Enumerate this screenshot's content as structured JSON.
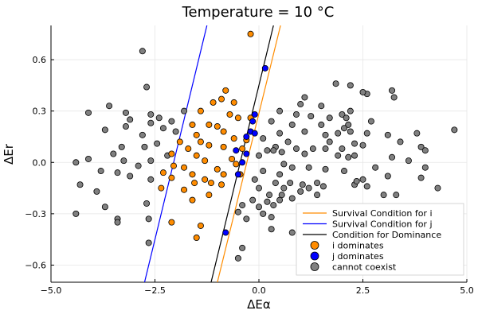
{
  "chart_data": {
    "type": "scatter",
    "title": "Temperature = 10 °C",
    "xlabel": "ΔEα",
    "ylabel": "ΔEr",
    "xlim": [
      -5.0,
      5.0
    ],
    "ylim": [
      -0.7,
      0.8
    ],
    "xticks": [
      -5.0,
      -2.5,
      0.0,
      2.5,
      5.0
    ],
    "xtick_labels": [
      "−5.0",
      "−2.5",
      "0.0",
      "2.5",
      "5.0"
    ],
    "yticks": [
      -0.6,
      -0.3,
      0.0,
      0.3,
      0.6
    ],
    "ytick_labels": [
      "−0.6",
      "−0.3",
      "0.0",
      "0.3",
      "0.6"
    ],
    "grid": true,
    "legend_position": "bottom-right",
    "lines": [
      {
        "name": "Survival Condition for i",
        "color": "#ff8c00",
        "points": [
          [
            -1.1,
            -0.8
          ],
          [
            0.52,
            0.8
          ]
        ]
      },
      {
        "name": "Survival Condition for j",
        "color": "#0000ff",
        "points": [
          [
            -2.85,
            -0.8
          ],
          [
            -1.25,
            0.8
          ]
        ]
      },
      {
        "name": "Condition for Dominance",
        "color": "#000000",
        "points": [
          [
            -1.25,
            -0.8
          ],
          [
            0.35,
            0.8
          ]
        ]
      }
    ],
    "series": [
      {
        "name": "i dominates",
        "color": "#ff8c00",
        "points": [
          [
            -0.2,
            0.75
          ],
          [
            -0.8,
            0.42
          ],
          [
            -0.9,
            0.37
          ],
          [
            -1.1,
            0.35
          ],
          [
            -0.6,
            0.35
          ],
          [
            -1.4,
            0.3
          ],
          [
            -0.7,
            0.28
          ],
          [
            -0.5,
            0.26
          ],
          [
            -0.2,
            0.26
          ],
          [
            -1.6,
            0.22
          ],
          [
            -1.2,
            0.22
          ],
          [
            -1.0,
            0.21
          ],
          [
            -0.85,
            0.18
          ],
          [
            -1.5,
            0.16
          ],
          [
            -0.6,
            0.14
          ],
          [
            -0.3,
            0.13
          ],
          [
            -1.9,
            0.12
          ],
          [
            -1.4,
            0.12
          ],
          [
            -1.2,
            0.1
          ],
          [
            -0.85,
            0.09
          ],
          [
            -1.7,
            0.08
          ],
          [
            -0.4,
            0.08
          ],
          [
            -2.1,
            0.05
          ],
          [
            -1.5,
            0.04
          ],
          [
            -0.65,
            0.02
          ],
          [
            -1.3,
            0.01
          ],
          [
            -0.55,
            -0.01
          ],
          [
            -2.05,
            -0.02
          ],
          [
            -1.8,
            -0.03
          ],
          [
            -1.0,
            -0.04
          ],
          [
            -2.3,
            -0.06
          ],
          [
            -1.6,
            -0.07
          ],
          [
            -0.85,
            -0.07
          ],
          [
            -0.45,
            -0.07
          ],
          [
            -2.1,
            -0.09
          ],
          [
            -1.3,
            -0.1
          ],
          [
            -1.55,
            -0.12
          ],
          [
            -1.15,
            -0.12
          ],
          [
            -0.9,
            -0.13
          ],
          [
            -2.35,
            -0.15
          ],
          [
            -1.8,
            -0.16
          ],
          [
            -1.2,
            -0.19
          ],
          [
            -1.6,
            -0.22
          ],
          [
            -2.1,
            -0.35
          ],
          [
            -1.4,
            -0.37
          ],
          [
            -1.5,
            -0.44
          ]
        ]
      },
      {
        "name": "j dominates",
        "color": "#0000ff",
        "points": [
          [
            0.15,
            0.55
          ],
          [
            -0.1,
            0.28
          ],
          [
            -0.15,
            0.24
          ],
          [
            -0.2,
            0.18
          ],
          [
            -0.3,
            0.15
          ],
          [
            -0.1,
            0.17
          ],
          [
            -0.55,
            0.07
          ],
          [
            -0.3,
            0.05
          ],
          [
            -0.4,
            0.0
          ],
          [
            -0.5,
            -0.07
          ],
          [
            -0.8,
            -0.41
          ]
        ]
      },
      {
        "name": "cannot coexist",
        "color": "#808080",
        "points": [
          [
            -2.8,
            0.65
          ],
          [
            -3.6,
            0.33
          ],
          [
            -2.7,
            0.44
          ],
          [
            -4.1,
            0.29
          ],
          [
            -3.2,
            0.29
          ],
          [
            -2.6,
            0.28
          ],
          [
            -2.4,
            0.26
          ],
          [
            -3.1,
            0.25
          ],
          [
            -2.1,
            0.24
          ],
          [
            -2.6,
            0.23
          ],
          [
            -3.2,
            0.21
          ],
          [
            -3.7,
            0.19
          ],
          [
            -2.3,
            0.2
          ],
          [
            -1.8,
            0.3
          ],
          [
            -2.0,
            0.18
          ],
          [
            -2.8,
            0.16
          ],
          [
            -2.45,
            0.11
          ],
          [
            -3.3,
            0.09
          ],
          [
            -2.75,
            0.09
          ],
          [
            -3.5,
            0.05
          ],
          [
            -2.2,
            0.04
          ],
          [
            -4.1,
            0.02
          ],
          [
            -4.4,
            0.0
          ],
          [
            -2.6,
            0.01
          ],
          [
            -3.25,
            0.01
          ],
          [
            -2.9,
            -0.02
          ],
          [
            -3.8,
            -0.05
          ],
          [
            -3.1,
            -0.08
          ],
          [
            -2.6,
            -0.1
          ],
          [
            -3.4,
            -0.06
          ],
          [
            -4.3,
            -0.13
          ],
          [
            -3.9,
            -0.17
          ],
          [
            -3.7,
            -0.26
          ],
          [
            -4.4,
            -0.3
          ],
          [
            -3.4,
            -0.33
          ],
          [
            -3.4,
            -0.35
          ],
          [
            -2.65,
            -0.33
          ],
          [
            -2.65,
            -0.47
          ],
          [
            -2.7,
            -0.24
          ],
          [
            1.1,
            0.38
          ],
          [
            1.0,
            0.34
          ],
          [
            1.5,
            0.33
          ],
          [
            1.85,
            0.46
          ],
          [
            2.2,
            0.45
          ],
          [
            2.6,
            0.4
          ],
          [
            2.5,
            0.41
          ],
          [
            3.2,
            0.42
          ],
          [
            3.25,
            0.38
          ],
          [
            0.5,
            0.3
          ],
          [
            0.9,
            0.28
          ],
          [
            1.25,
            0.27
          ],
          [
            1.7,
            0.26
          ],
          [
            2.0,
            0.28
          ],
          [
            2.2,
            0.3
          ],
          [
            2.1,
            0.26
          ],
          [
            0.3,
            0.24
          ],
          [
            0.8,
            0.22
          ],
          [
            1.5,
            0.22
          ],
          [
            2.15,
            0.22
          ],
          [
            2.7,
            0.24
          ],
          [
            2.05,
            0.2
          ],
          [
            1.9,
            0.17
          ],
          [
            2.2,
            0.18
          ],
          [
            0.5,
            0.17
          ],
          [
            1.1,
            0.18
          ],
          [
            1.6,
            0.16
          ],
          [
            2.6,
            0.17
          ],
          [
            3.1,
            0.16
          ],
          [
            3.8,
            0.17
          ],
          [
            4.7,
            0.19
          ],
          [
            0.1,
            0.14
          ],
          [
            0.7,
            0.12
          ],
          [
            1.7,
            0.12
          ],
          [
            3.4,
            0.12
          ],
          [
            2.3,
            0.11
          ],
          [
            0.4,
            0.09
          ],
          [
            0.9,
            0.08
          ],
          [
            1.3,
            0.08
          ],
          [
            1.6,
            0.08
          ],
          [
            2.0,
            0.08
          ],
          [
            2.5,
            0.1
          ],
          [
            3.9,
            0.09
          ],
          [
            4.0,
            0.07
          ],
          [
            0.2,
            0.07
          ],
          [
            0.35,
            0.07
          ],
          [
            0.55,
            0.06
          ],
          [
            1.1,
            0.05
          ],
          [
            1.9,
            0.04
          ],
          [
            2.3,
            0.04
          ],
          [
            2.15,
            0.03
          ],
          [
            3.2,
            0.03
          ],
          [
            3.6,
            0.01
          ],
          [
            0.0,
            0.04
          ],
          [
            0.6,
            -0.01
          ],
          [
            0.8,
            -0.03
          ],
          [
            1.2,
            -0.03
          ],
          [
            1.6,
            -0.04
          ],
          [
            2.05,
            -0.05
          ],
          [
            2.8,
            -0.03
          ],
          [
            4.0,
            -0.03
          ],
          [
            0.1,
            -0.05
          ],
          [
            0.5,
            -0.07
          ],
          [
            2.5,
            -0.1
          ],
          [
            3.1,
            -0.08
          ],
          [
            3.9,
            -0.09
          ],
          [
            -0.1,
            -0.1
          ],
          [
            0.4,
            -0.12
          ],
          [
            0.75,
            -0.12
          ],
          [
            1.05,
            -0.13
          ],
          [
            1.4,
            -0.12
          ],
          [
            2.3,
            -0.13
          ],
          [
            2.35,
            -0.11
          ],
          [
            0.0,
            -0.15
          ],
          [
            0.6,
            -0.15
          ],
          [
            1.55,
            -0.14
          ],
          [
            2.6,
            -0.14
          ],
          [
            0.25,
            -0.19
          ],
          [
            1.0,
            -0.17
          ],
          [
            1.2,
            -0.15
          ],
          [
            1.4,
            -0.19
          ],
          [
            3.0,
            -0.19
          ],
          [
            3.3,
            -0.19
          ],
          [
            4.3,
            -0.15
          ],
          [
            0.55,
            -0.19
          ],
          [
            -0.15,
            -0.22
          ],
          [
            0.2,
            -0.23
          ],
          [
            0.5,
            -0.22
          ],
          [
            0.8,
            -0.21
          ],
          [
            -0.4,
            -0.25
          ],
          [
            0.0,
            -0.26
          ],
          [
            0.35,
            -0.25
          ],
          [
            -0.5,
            -0.29
          ],
          [
            0.1,
            -0.3
          ],
          [
            0.3,
            -0.32
          ],
          [
            0.3,
            -0.39
          ],
          [
            0.8,
            -0.41
          ],
          [
            1.4,
            -0.3
          ],
          [
            -0.3,
            -0.33
          ],
          [
            -0.4,
            -0.5
          ],
          [
            -0.5,
            -0.56
          ]
        ]
      }
    ]
  }
}
